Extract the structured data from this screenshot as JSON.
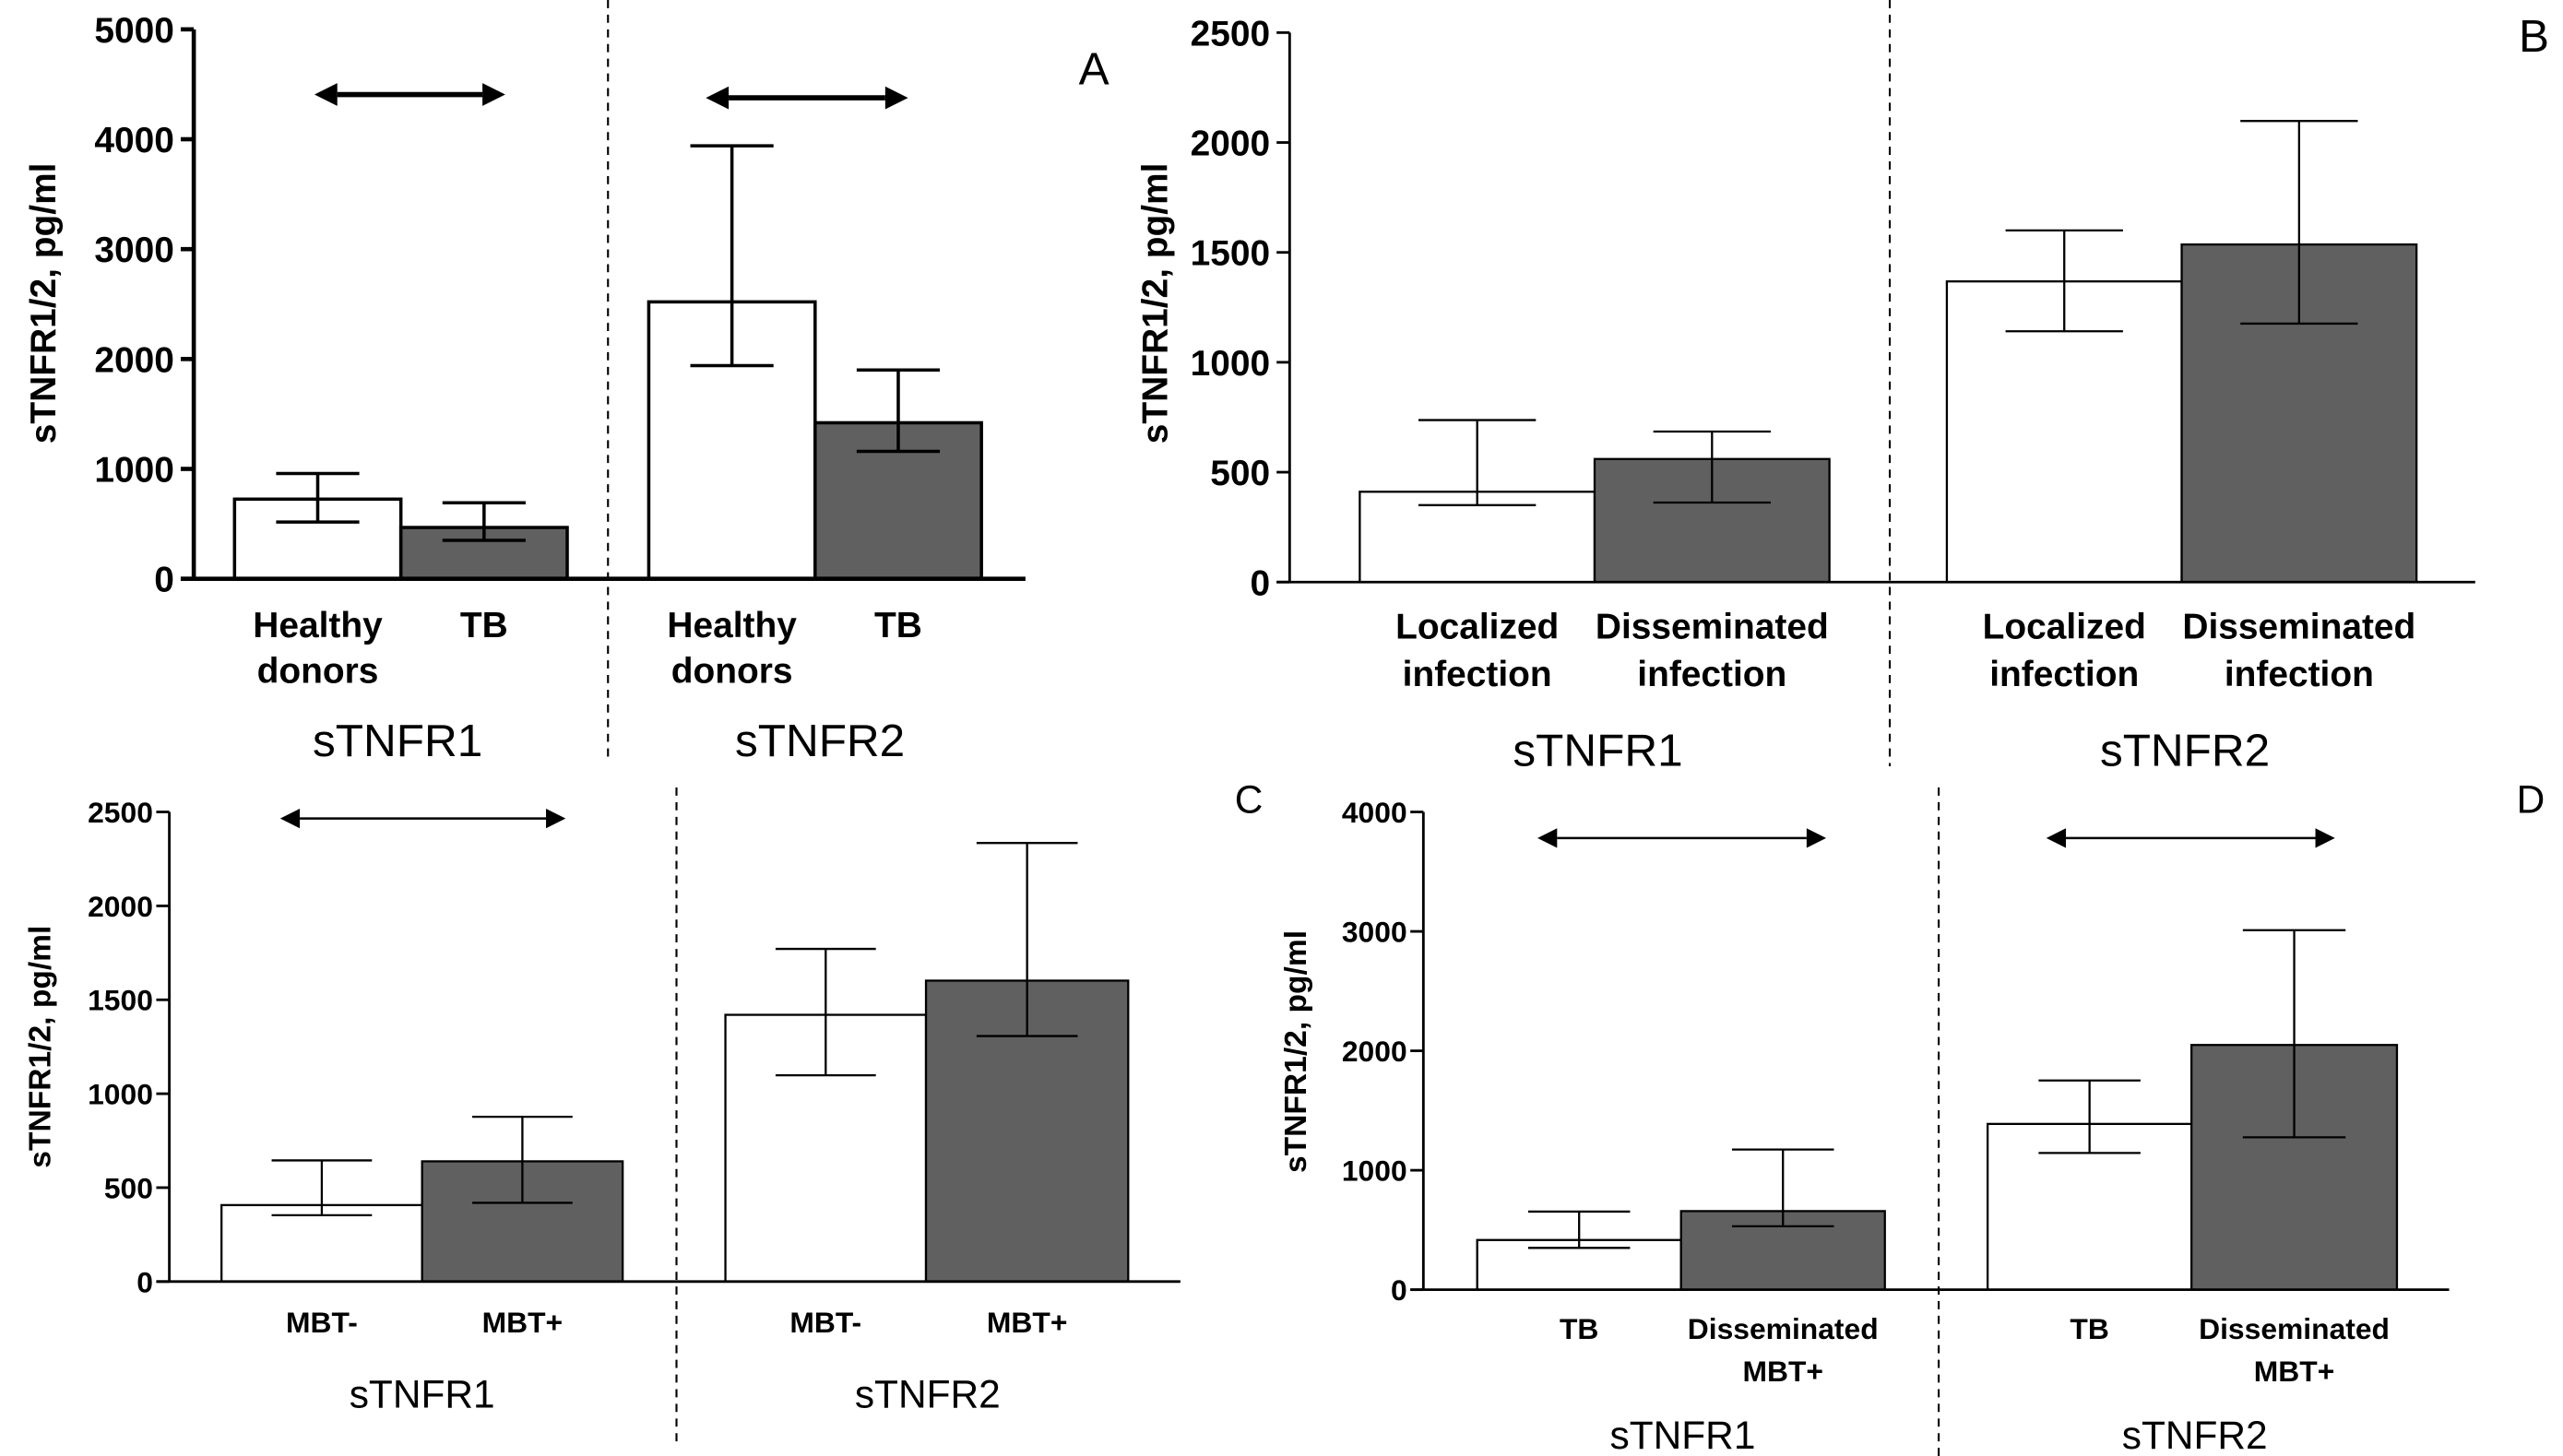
{
  "figure": {
    "colors": {
      "open_bar": "#ffffff",
      "filled_bar": "#606060",
      "stroke": "#000000"
    }
  },
  "chart_data": [
    {
      "panel": "A",
      "type": "bar",
      "ylabel": "sTNFR1/2, pg/ml",
      "ylim": [
        0,
        5000
      ],
      "yticks": [
        0,
        1000,
        2000,
        3000,
        4000,
        5000
      ],
      "groups": [
        {
          "name": "sTNFR1",
          "categories": [
            {
              "label_lines": [
                "Healthy",
                "donors"
              ],
              "value": 725,
              "err_low": 517,
              "err_high": 958,
              "fill": "open"
            },
            {
              "label_lines": [
                "TB"
              ],
              "value": 467,
              "err_low": 350,
              "err_high": 692,
              "fill": "filled"
            }
          ],
          "comparison_arrow": true
        },
        {
          "name": "sTNFR2",
          "categories": [
            {
              "label_lines": [
                "Healthy",
                "donors"
              ],
              "value": 2520,
              "err_low": 1940,
              "err_high": 3940,
              "fill": "open"
            },
            {
              "label_lines": [
                "TB"
              ],
              "value": 1420,
              "err_low": 1160,
              "err_high": 1900,
              "fill": "filled"
            }
          ],
          "comparison_arrow": true
        }
      ]
    },
    {
      "panel": "B",
      "type": "bar",
      "ylabel": "sTNFR1/2, pg/ml",
      "ylim": [
        0,
        2500
      ],
      "yticks": [
        0,
        500,
        1000,
        1500,
        2000,
        2500
      ],
      "groups": [
        {
          "name": "sTNFR1",
          "categories": [
            {
              "label_lines": [
                "Localized",
                "infection"
              ],
              "value": 411,
              "err_low": 350,
              "err_high": 737,
              "fill": "open"
            },
            {
              "label_lines": [
                "Disseminated",
                "infection"
              ],
              "value": 560,
              "err_low": 362,
              "err_high": 685,
              "fill": "filled"
            }
          ],
          "comparison_arrow": false
        },
        {
          "name": "sTNFR2",
          "categories": [
            {
              "label_lines": [
                "Localized",
                "infection"
              ],
              "value": 1368,
              "err_low": 1141,
              "err_high": 1600,
              "fill": "open"
            },
            {
              "label_lines": [
                "Disseminated",
                "infection"
              ],
              "value": 1536,
              "err_low": 1176,
              "err_high": 2098,
              "fill": "filled"
            }
          ],
          "comparison_arrow": false
        }
      ]
    },
    {
      "panel": "C",
      "type": "bar",
      "ylabel": "sTNFR1/2, pg/ml",
      "ylim": [
        0,
        2500
      ],
      "yticks": [
        0,
        500,
        1000,
        1500,
        2000,
        2500
      ],
      "groups": [
        {
          "name": "sTNFR1",
          "categories": [
            {
              "label_lines": [
                "MBT-"
              ],
              "value": 407,
              "err_low": 353,
              "err_high": 645,
              "fill": "open"
            },
            {
              "label_lines": [
                "MBT+"
              ],
              "value": 640,
              "err_low": 419,
              "err_high": 877,
              "fill": "filled"
            }
          ],
          "comparison_arrow": true
        },
        {
          "name": "sTNFR2",
          "categories": [
            {
              "label_lines": [
                "MBT-"
              ],
              "value": 1420,
              "err_low": 1098,
              "err_high": 1771,
              "fill": "open"
            },
            {
              "label_lines": [
                "MBT+"
              ],
              "value": 1602,
              "err_low": 1307,
              "err_high": 2335,
              "fill": "filled"
            }
          ],
          "comparison_arrow": false
        }
      ]
    },
    {
      "panel": "D",
      "type": "bar",
      "ylabel": "sTNFR1/2, pg/ml",
      "ylim": [
        0,
        4000
      ],
      "yticks": [
        0,
        1000,
        2000,
        3000,
        4000
      ],
      "groups": [
        {
          "name": "sTNFR1",
          "categories": [
            {
              "label_lines": [
                "TB"
              ],
              "value": 416,
              "err_low": 350,
              "err_high": 654,
              "fill": "open"
            },
            {
              "label_lines": [
                "Disseminated",
                "MBT+"
              ],
              "value": 658,
              "err_low": 531,
              "err_high": 1174,
              "fill": "filled"
            }
          ],
          "comparison_arrow": true
        },
        {
          "name": "sTNFR2",
          "categories": [
            {
              "label_lines": [
                "TB"
              ],
              "value": 1388,
              "err_low": 1145,
              "err_high": 1752,
              "fill": "open"
            },
            {
              "label_lines": [
                "Disseminated",
                "MBT+"
              ],
              "value": 2049,
              "err_low": 1276,
              "err_high": 3010,
              "fill": "filled"
            }
          ],
          "comparison_arrow": true
        }
      ]
    }
  ]
}
